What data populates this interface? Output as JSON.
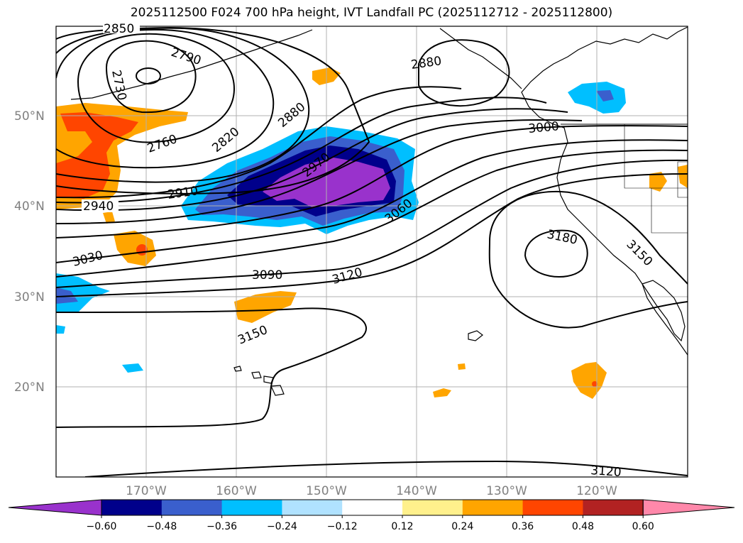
{
  "title": "2025112500 F024 700 hPa height, IVT Landfall PC (2025112712 - 2025112800)",
  "map": {
    "lon_labels": [
      "170°W",
      "160°W",
      "150°W",
      "140°W",
      "130°W",
      "120°W"
    ],
    "lat_labels": [
      "50°N",
      "40°N",
      "30°N",
      "20°N"
    ],
    "contour_labels": [
      "2850",
      "2790",
      "2730",
      "2760",
      "2820",
      "2880",
      "2910",
      "2940",
      "2970",
      "3000",
      "3030",
      "3060",
      "3090",
      "3120",
      "3150",
      "3180",
      "3150",
      "2880",
      "3120"
    ]
  },
  "colorbar": {
    "ticks": [
      "−0.60",
      "−0.48",
      "−0.36",
      "−0.24",
      "−0.12",
      "0.12",
      "0.24",
      "0.36",
      "0.48",
      "0.60"
    ],
    "colors": [
      "#9932cc",
      "#00008b",
      "#3a5fcd",
      "#00bfff",
      "#b0e2ff",
      "#ffffff",
      "#fff08c",
      "#ffa500",
      "#ff4500",
      "#b22222",
      "#ff88aa"
    ]
  }
}
